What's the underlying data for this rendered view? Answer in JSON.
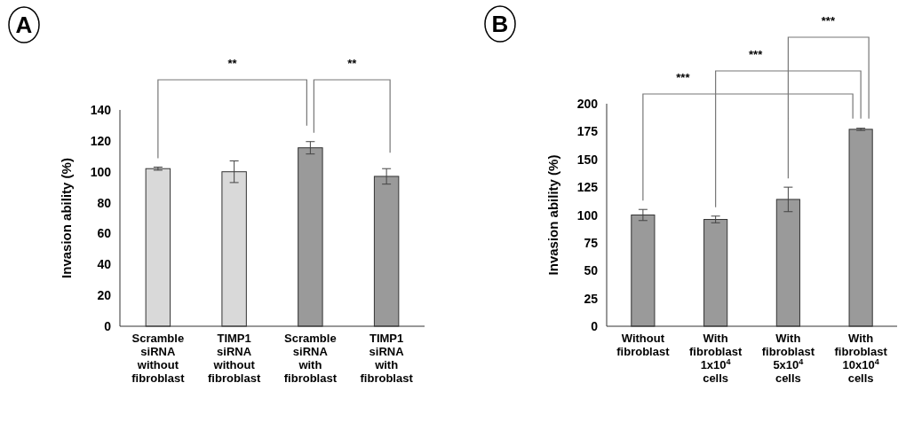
{
  "chart_data": [
    {
      "type": "bar",
      "title": "A",
      "ylabel": "Invasion ability (%)",
      "categories": [
        "Scramble siRNA without fibroblast",
        "TIMP1 siRNA without fibroblast",
        "Scramble siRNA with fibroblast",
        "TIMP1 siRNA with fibroblast"
      ],
      "values": [
        102,
        100,
        115.5,
        97
      ],
      "errors": [
        1,
        7,
        4,
        5
      ],
      "colors": [
        "#d9d9d9",
        "#d9d9d9",
        "#9a9a9a",
        "#9a9a9a"
      ],
      "ylim": [
        0,
        140
      ],
      "yticks": [
        0,
        20,
        40,
        60,
        80,
        100,
        120,
        140
      ],
      "grid": false,
      "annotations": [
        "**",
        "**"
      ]
    },
    {
      "type": "bar",
      "title": "B",
      "ylabel": "Invasion ability (%)",
      "categories": [
        "Without fibroblast",
        "With fibroblast 1x10$^{4}$ cells",
        "With fibroblast 5x10$^{4}$ cells",
        "With fibroblast 10x10$^{4}$ cells"
      ],
      "values": [
        100,
        96,
        114,
        177
      ],
      "errors": [
        5,
        3,
        11,
        1
      ],
      "colors": [
        "#9a9a9a",
        "#9a9a9a",
        "#9a9a9a",
        "#9a9a9a"
      ],
      "ylim": [
        0,
        200
      ],
      "yticks": [
        0,
        25,
        50,
        75,
        100,
        125,
        150,
        175,
        200
      ],
      "grid": false,
      "annotations": [
        "***",
        "***",
        "***"
      ]
    }
  ]
}
